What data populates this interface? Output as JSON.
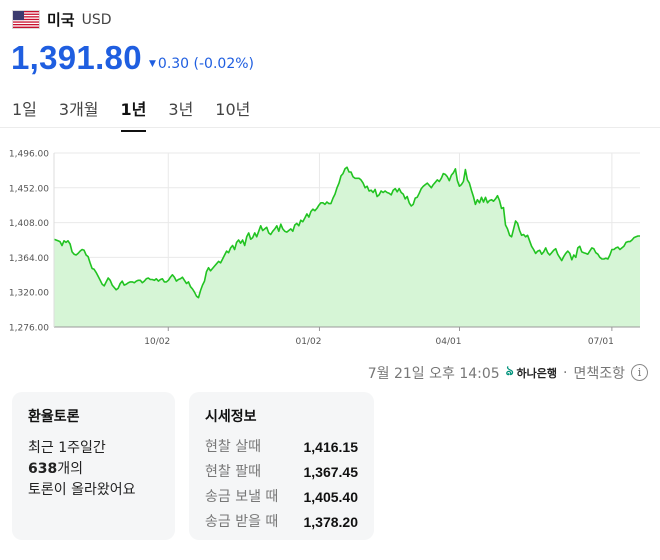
{
  "header": {
    "flag_icon": "us-flag-icon",
    "country": "미국",
    "currency": "USD",
    "rate": "1,391.80",
    "change_arrow": "▼",
    "change": "0.30 (-0.02%)",
    "change_color": "#1f5ee0",
    "rate_color": "#1f5ee0"
  },
  "tabs": [
    {
      "label": "1일",
      "active": false
    },
    {
      "label": "3개월",
      "active": false
    },
    {
      "label": "1년",
      "active": true
    },
    {
      "label": "3년",
      "active": false
    },
    {
      "label": "10년",
      "active": false
    }
  ],
  "chart_data": {
    "type": "area",
    "ylim": [
      1276,
      1496
    ],
    "y_ticks": [
      "1,496.00",
      "1,452.00",
      "1,408.00",
      "1,364.00",
      "1,320.00",
      "1,276.00"
    ],
    "x_ticks": [
      "10/02",
      "01/02",
      "04/01",
      "07/01"
    ],
    "grid": true,
    "line_color": "#22c322",
    "fill_color": "#d6f5d6",
    "series": [
      {
        "values": [
          1387,
          1386,
          1385,
          1384,
          1379,
          1385,
          1383,
          1385,
          1381,
          1371,
          1368,
          1367,
          1369,
          1372,
          1374,
          1373,
          1367,
          1365,
          1357,
          1350,
          1349,
          1345,
          1340,
          1335,
          1330,
          1328,
          1333,
          1338,
          1335,
          1329,
          1326,
          1323,
          1325,
          1331,
          1334,
          1329,
          1330,
          1332,
          1333,
          1333,
          1332,
          1334,
          1335,
          1335,
          1332,
          1334,
          1337,
          1338,
          1336,
          1336,
          1335,
          1337,
          1334,
          1336,
          1337,
          1333,
          1333,
          1335,
          1339,
          1342,
          1339,
          1334,
          1336,
          1337,
          1339,
          1335,
          1331,
          1333,
          1327,
          1324,
          1320,
          1315,
          1313,
          1322,
          1329,
          1334,
          1346,
          1351,
          1347,
          1350,
          1353,
          1356,
          1359,
          1357,
          1362,
          1367,
          1372,
          1370,
          1376,
          1379,
          1374,
          1383,
          1386,
          1382,
          1386,
          1379,
          1390,
          1395,
          1387,
          1389,
          1395,
          1390,
          1397,
          1404,
          1398,
          1400,
          1402,
          1395,
          1393,
          1397,
          1400,
          1404,
          1397,
          1406,
          1400,
          1397,
          1396,
          1398,
          1400,
          1397,
          1405,
          1407,
          1404,
          1411,
          1409,
          1414,
          1419,
          1415,
          1422,
          1425,
          1423,
          1426,
          1430,
          1433,
          1433,
          1431,
          1434,
          1432,
          1432,
          1439,
          1444,
          1452,
          1458,
          1467,
          1470,
          1476,
          1478,
          1472,
          1472,
          1466,
          1464,
          1464,
          1464,
          1462,
          1458,
          1452,
          1454,
          1448,
          1449,
          1446,
          1450,
          1441,
          1443,
          1448,
          1446,
          1448,
          1446,
          1445,
          1443,
          1449,
          1451,
          1447,
          1451,
          1446,
          1444,
          1438,
          1441,
          1433,
          1429,
          1431,
          1439,
          1440,
          1445,
          1451,
          1454,
          1456,
          1458,
          1455,
          1452,
          1456,
          1459,
          1462,
          1460,
          1464,
          1470,
          1469,
          1466,
          1461,
          1468,
          1471,
          1476,
          1461,
          1454,
          1456,
          1460,
          1475,
          1462,
          1458,
          1449,
          1441,
          1431,
          1437,
          1433,
          1440,
          1434,
          1440,
          1433,
          1436,
          1437,
          1435,
          1438,
          1442,
          1436,
          1426,
          1427,
          1405,
          1400,
          1392,
          1390,
          1400,
          1410,
          1407,
          1398,
          1392,
          1393,
          1390,
          1392,
          1385,
          1378,
          1374,
          1369,
          1372,
          1373,
          1368,
          1371,
          1376,
          1370,
          1367,
          1370,
          1373,
          1375,
          1368,
          1364,
          1360,
          1365,
          1369,
          1372,
          1369,
          1361,
          1367,
          1364,
          1376,
          1378,
          1371,
          1370,
          1369,
          1368,
          1372,
          1376,
          1375,
          1370,
          1368,
          1364,
          1362,
          1362,
          1363,
          1362,
          1367,
          1374,
          1374,
          1376,
          1377,
          1374,
          1376,
          1378,
          1383,
          1384,
          1384,
          1386,
          1389,
          1390,
          1391,
          1391
        ]
      }
    ]
  },
  "source": {
    "timestamp": "7월 21일 오후 14:05",
    "bank_icon": "hana-bank-logo-icon",
    "bank": "하나은행",
    "separator": "·",
    "disclaimer": "면책조항",
    "info_icon": "info-icon"
  },
  "forum_card": {
    "title": "환율토론",
    "line1": "최근 1주일간",
    "count": "638",
    "count_suffix": "개의",
    "line3": "토론이 올라왔어요"
  },
  "market_card": {
    "title": "시세정보",
    "rows": [
      {
        "label": "현찰 살때",
        "value": "1,416.15"
      },
      {
        "label": "현찰 팔때",
        "value": "1,367.45"
      },
      {
        "label": "송금 보낼 때",
        "value": "1,405.40"
      },
      {
        "label": "송금 받을 때",
        "value": "1,378.20"
      }
    ]
  }
}
